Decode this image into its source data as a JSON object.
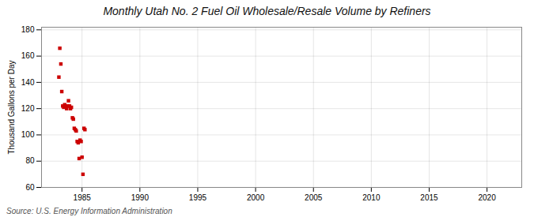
{
  "chart_data": {
    "type": "scatter",
    "title": "Monthly Utah No. 2 Fuel Oil Wholesale/Resale Volume by Refiners",
    "ylabel": "Thousand Gallons per Day",
    "annotations": [
      "Source: U.S. Energy Information Administration"
    ],
    "x": [
      1983.0,
      1983.08,
      1983.17,
      1983.25,
      1983.33,
      1983.42,
      1983.5,
      1983.58,
      1983.67,
      1983.75,
      1983.83,
      1983.92,
      1984.0,
      1984.08,
      1984.17,
      1984.25,
      1984.33,
      1984.42,
      1984.5,
      1984.58,
      1984.67,
      1984.75,
      1984.83,
      1984.92,
      1985.0,
      1985.08,
      1985.17,
      1985.25
    ],
    "values": [
      144,
      166,
      154,
      133,
      122,
      121,
      123,
      122,
      120,
      122,
      126,
      122,
      120,
      121,
      113,
      112,
      105,
      104,
      103,
      95,
      94,
      82,
      96,
      95,
      83,
      70,
      105,
      104
    ],
    "color": "#cc0000",
    "marker": "square",
    "xlim": [
      1981.5,
      2023
    ],
    "ylim": [
      60,
      182
    ],
    "xticks": [
      1985,
      1990,
      1995,
      2000,
      2005,
      2010,
      2015,
      2020
    ],
    "yticks": [
      60,
      80,
      100,
      120,
      140,
      160,
      180
    ],
    "grid": true
  }
}
